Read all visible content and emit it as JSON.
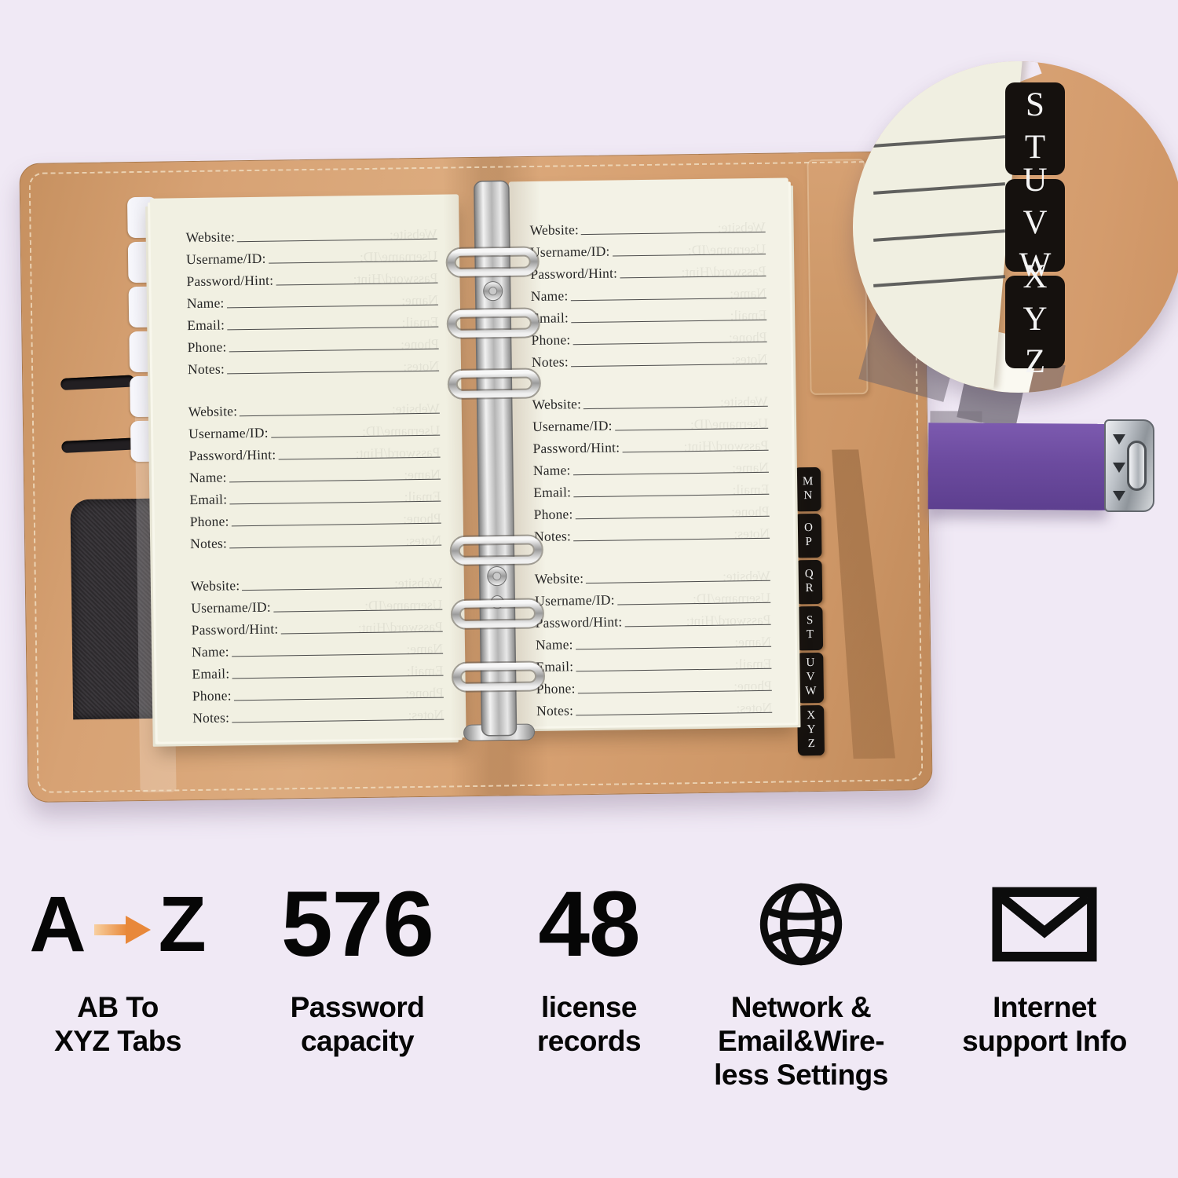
{
  "page": {
    "field_labels": [
      "Website:",
      "Username/ID:",
      "Password/Hint:",
      "Name:",
      "Email:",
      "Phone:",
      "Notes:"
    ],
    "blocks_per_page": 3,
    "pages_visible": 2
  },
  "tabs": {
    "right_visible": [
      "MN",
      "OP",
      "QR",
      "ST",
      "UVW",
      "XYZ"
    ],
    "magnified": [
      "ST",
      "UVW",
      "XYZ"
    ]
  },
  "features": [
    {
      "id": "az-tabs",
      "primary": "A",
      "secondary": "Z",
      "arrow_icon": "right-arrow-icon",
      "caption": "AB To\nXYZ Tabs"
    },
    {
      "id": "password-capacity",
      "primary": "576",
      "caption": "Password\ncapacity"
    },
    {
      "id": "license-records",
      "primary": "48",
      "caption": "license\nrecords"
    },
    {
      "id": "network-settings",
      "icon": "globe-icon",
      "caption": "Network &\nEmail&Wire-\nless Settings"
    },
    {
      "id": "internet-support",
      "icon": "envelope-icon",
      "caption": "Internet\nsupport Info"
    }
  ],
  "colors": {
    "background": "#f0e9f5",
    "leather_tan": "#d7a172",
    "paper_cream": "#f1f0e2",
    "tab_black": "#16120f",
    "strap_purple": "#6c4b9f",
    "accent_orange": "#e8883a",
    "metal_silver": "#c9ccd0"
  }
}
